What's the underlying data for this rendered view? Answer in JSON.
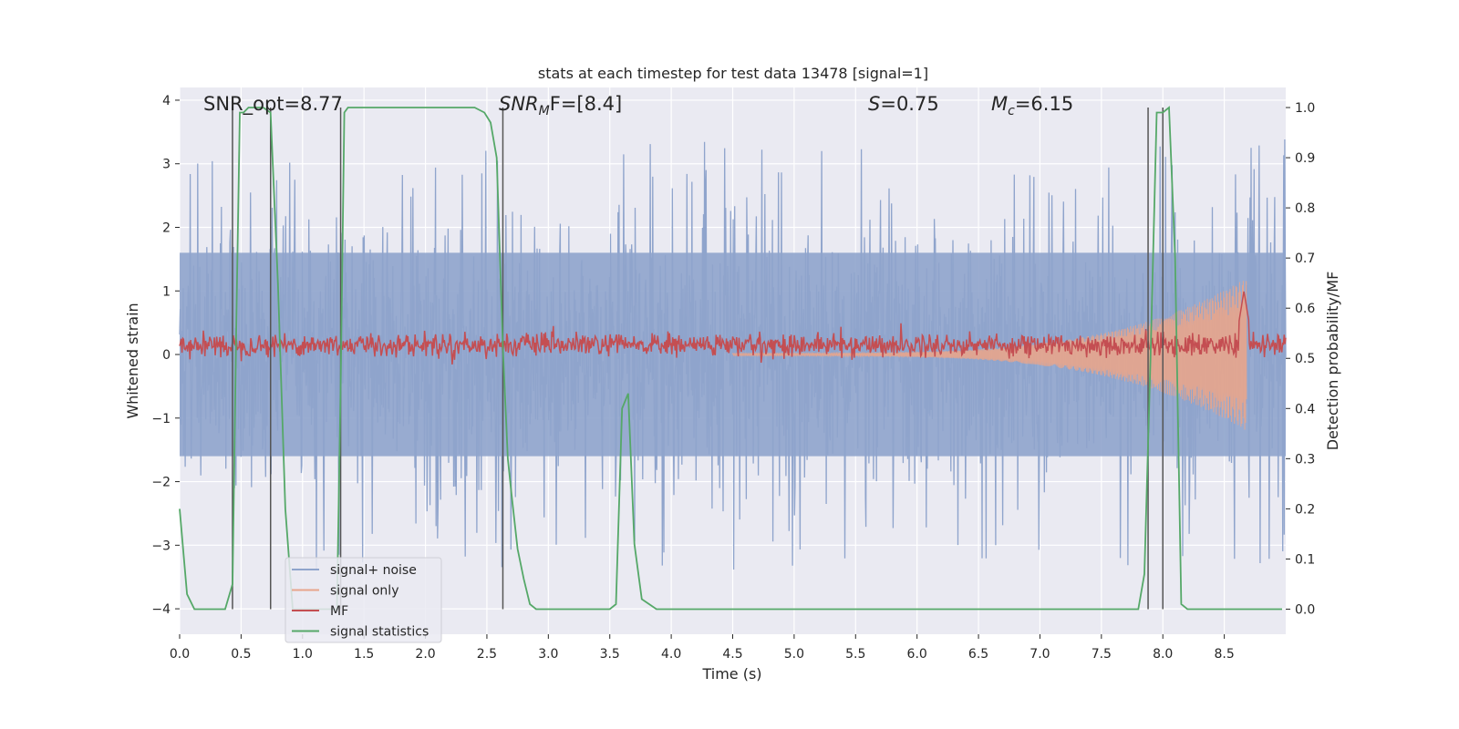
{
  "chart_data": {
    "type": "line",
    "title": "stats at each timestep for test data 13478 [signal=1]",
    "xlabel": "Time (s)",
    "ylabel_left": "Whitened strain",
    "ylabel_right": "Detection probability/MF",
    "xlim": [
      0,
      9.0
    ],
    "ylim_left": [
      -4.4,
      4.2
    ],
    "ylim_right": [
      -0.05,
      1.04
    ],
    "x_ticks": [
      0.0,
      0.5,
      1.0,
      1.5,
      2.0,
      2.5,
      3.0,
      3.5,
      4.0,
      4.5,
      5.0,
      5.5,
      6.0,
      6.5,
      7.0,
      7.5,
      8.0,
      8.5
    ],
    "x_tick_labels": [
      "0.0",
      "0.5",
      "1.0",
      "1.5",
      "2.0",
      "2.5",
      "3.0",
      "3.5",
      "4.0",
      "4.5",
      "5.0",
      "5.5",
      "6.0",
      "6.5",
      "7.0",
      "7.5",
      "8.0",
      "8.5"
    ],
    "y_left_ticks": [
      4,
      3,
      2,
      1,
      0,
      -1,
      -2,
      -3,
      -4
    ],
    "y_left_tick_labels": [
      "4",
      "3",
      "2",
      "1",
      "0",
      "−1",
      "−2",
      "−3",
      "−4"
    ],
    "y_right_ticks": [
      1.0,
      0.9,
      0.8,
      0.7,
      0.6,
      0.5,
      0.4,
      0.3,
      0.2,
      0.1,
      0.0
    ],
    "y_right_tick_labels": [
      "1.0",
      "0.9",
      "0.8",
      "0.7",
      "0.6",
      "0.5",
      "0.4",
      "0.3",
      "0.2",
      "0.1",
      "0.0"
    ],
    "grid": true,
    "legend_placement": "lower-left",
    "annotations": {
      "snr_opt": "SNR_opt=8.77",
      "snr_mf_base": "SNR",
      "snr_mf_sub": "M",
      "snr_mf_rest": "F=[8.4]",
      "s_label": "S",
      "s_value": "=0.75",
      "mc_base": "M",
      "mc_sub": "c",
      "mc_value": "=6.15"
    },
    "vertical_lines_x": [
      0.43,
      0.74,
      1.31,
      2.63,
      7.88,
      8.0
    ],
    "series": [
      {
        "name": "signal+ noise",
        "color": "#8fa4cc",
        "axis": "left",
        "kind": "noise",
        "envelope": 1.6,
        "spike_max": 3.85,
        "x_range": [
          0,
          9.0
        ]
      },
      {
        "name": "signal only",
        "color": "#e8a58c",
        "axis": "left",
        "kind": "chirp",
        "amplitude_start": 0.02,
        "amplitude_end": 1.2,
        "x_range": [
          4.5,
          8.68
        ]
      },
      {
        "name": "MF",
        "color": "#c44e52",
        "axis": "left",
        "kind": "noise-band",
        "center": 0.15,
        "band": 0.2,
        "x_range": [
          0,
          9.0
        ]
      },
      {
        "name": "signal statistics",
        "color": "#55a868",
        "axis": "right",
        "kind": "line",
        "x": [
          0.0,
          0.06,
          0.12,
          0.18,
          0.25,
          0.31,
          0.37,
          0.43,
          0.46,
          0.49,
          0.52,
          0.56,
          0.62,
          0.68,
          0.74,
          0.8,
          0.86,
          0.92,
          0.98,
          1.04,
          1.1,
          1.16,
          1.22,
          1.28,
          1.31,
          1.34,
          1.37,
          1.4,
          1.46,
          1.6,
          1.8,
          2.0,
          2.2,
          2.4,
          2.48,
          2.53,
          2.58,
          2.63,
          2.67,
          2.7,
          2.75,
          2.8,
          2.85,
          2.9,
          2.95,
          3.0,
          3.1,
          3.3,
          3.5,
          3.55,
          3.6,
          3.65,
          3.7,
          3.76,
          3.82,
          3.88,
          3.94,
          4.0,
          5.0,
          6.0,
          7.0,
          7.5,
          7.8,
          7.85,
          7.9,
          7.95,
          8.0,
          8.05,
          8.1,
          8.15,
          8.2,
          8.5,
          8.7,
          8.9,
          8.97
        ],
        "y": [
          0.2,
          0.03,
          0.0,
          0.0,
          0.0,
          0.0,
          0.0,
          0.05,
          0.55,
          0.99,
          0.99,
          1.0,
          1.0,
          1.0,
          0.99,
          0.65,
          0.2,
          0.0,
          0.0,
          0.0,
          0.0,
          0.0,
          0.0,
          0.0,
          0.45,
          0.99,
          1.0,
          1.0,
          1.0,
          1.0,
          1.0,
          1.0,
          1.0,
          1.0,
          0.99,
          0.97,
          0.9,
          0.52,
          0.3,
          0.23,
          0.12,
          0.06,
          0.01,
          0.0,
          0.0,
          0.0,
          0.0,
          0.0,
          0.0,
          0.01,
          0.4,
          0.43,
          0.13,
          0.02,
          0.01,
          0.0,
          0.0,
          0.0,
          0.0,
          0.0,
          0.0,
          0.0,
          0.0,
          0.07,
          0.5,
          0.99,
          0.99,
          1.0,
          0.7,
          0.01,
          0.0,
          0.0,
          0.0,
          0.0,
          0.0
        ]
      }
    ]
  }
}
